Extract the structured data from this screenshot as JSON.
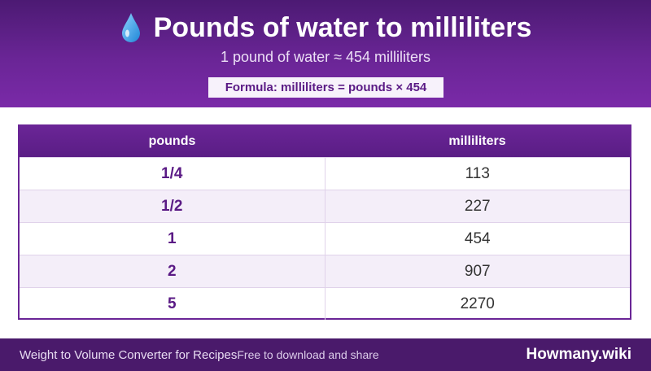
{
  "header": {
    "icon": "water-drop-icon",
    "title": "Pounds of water to milliliters",
    "subtitle": "1 pound of water ≈ 454 milliliters",
    "formula": "Formula: milliliters = pounds × 454"
  },
  "table": {
    "columns": [
      "pounds",
      "milliliters"
    ],
    "rows": [
      [
        "1/4",
        "113"
      ],
      [
        "1/2",
        "227"
      ],
      [
        "1",
        "454"
      ],
      [
        "2",
        "907"
      ],
      [
        "5",
        "2270"
      ]
    ]
  },
  "footer": {
    "app_name": "Weight to Volume Converter for Recipes",
    "tagline": "Free to download and share",
    "brand": "Howmany.wiki"
  },
  "colors": {
    "header_purple": "#6a2596",
    "footer_purple": "#4a1a6b",
    "drop_blue": "#3fa9f5"
  }
}
